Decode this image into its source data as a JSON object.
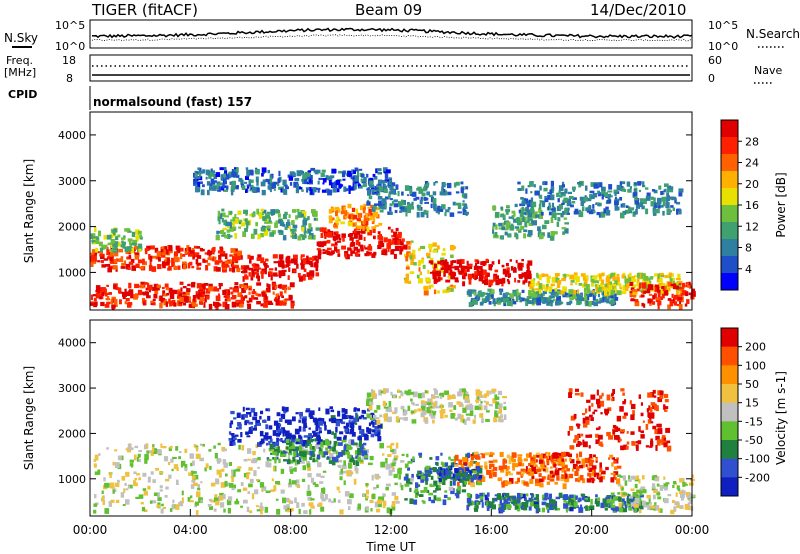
{
  "header": {
    "radar": "TIGER (fitACF)",
    "beam": "Beam 09",
    "date": "14/Dec/2010"
  },
  "top_panel": {
    "left_label": "N.Sky",
    "right_label": "N.Search",
    "left_ticks": [
      "10^5",
      "10^0"
    ],
    "right_ticks": [
      "10^5",
      "10^0"
    ]
  },
  "freq_panel": {
    "left_label_1": "Freq.",
    "left_label_2": "[MHz]",
    "right_label": "Nave",
    "left_ticks": [
      "18",
      "8"
    ],
    "right_ticks": [
      "60",
      "0"
    ]
  },
  "cpid_panel": {
    "label": "CPID",
    "text": "normalsound (fast) 157"
  },
  "chart_data": [
    {
      "type": "heatmap",
      "title": "",
      "quantity": "Power",
      "colorbar_label": "Power [dB]",
      "colorbar_ticks": [
        "28",
        "24",
        "20",
        "16",
        "12",
        "8",
        "4"
      ],
      "colorscale": [
        "#0000ff",
        "#1f4fc8",
        "#2f7fa0",
        "#3fa070",
        "#6fbf3f",
        "#e8e000",
        "#ffb000",
        "#ff6000",
        "#ff2000",
        "#e00000"
      ],
      "ylabel": "Slant Range [km]",
      "ylim": [
        180,
        4500
      ],
      "yticks": [
        "1000",
        "2000",
        "3000",
        "4000"
      ],
      "xlim_hours": [
        0,
        24
      ],
      "layers": [
        {
          "t": [
            0.0,
            8.0
          ],
          "r": [
            300,
            800
          ],
          "v": 0.9
        },
        {
          "t": [
            0.0,
            6.0
          ],
          "r": [
            1100,
            1600
          ],
          "v": 0.85
        },
        {
          "t": [
            6.0,
            9.0
          ],
          "r": [
            900,
            1400
          ],
          "v": 0.95
        },
        {
          "t": [
            9.0,
            12.5
          ],
          "r": [
            1400,
            2000
          ],
          "v": 0.95
        },
        {
          "t": [
            12.5,
            14.5
          ],
          "r": [
            600,
            1700
          ],
          "v": 0.6
        },
        {
          "t": [
            13.5,
            17.5
          ],
          "r": [
            800,
            1300
          ],
          "v": 1.0
        },
        {
          "t": [
            15.0,
            21.0
          ],
          "r": [
            350,
            650
          ],
          "v": 0.3
        },
        {
          "t": [
            17.5,
            23.5
          ],
          "r": [
            600,
            1000
          ],
          "v": 0.55
        },
        {
          "t": [
            21.5,
            24.0
          ],
          "r": [
            300,
            800
          ],
          "v": 0.9
        },
        {
          "t": [
            5.0,
            9.0
          ],
          "r": [
            1800,
            2400
          ],
          "v": 0.4
        },
        {
          "t": [
            9.5,
            11.5
          ],
          "r": [
            2000,
            2500
          ],
          "v": 0.7
        },
        {
          "t": [
            11.0,
            15.0
          ],
          "r": [
            2300,
            3000
          ],
          "v": 0.25
        },
        {
          "t": [
            16.0,
            19.0
          ],
          "r": [
            1800,
            2500
          ],
          "v": 0.35
        },
        {
          "t": [
            17.0,
            23.5
          ],
          "r": [
            2300,
            3000
          ],
          "v": 0.25
        },
        {
          "t": [
            4.0,
            12.0
          ],
          "r": [
            2800,
            3300
          ],
          "v": 0.2
        },
        {
          "t": [
            0.0,
            2.0
          ],
          "r": [
            1500,
            2000
          ],
          "v": 0.45
        }
      ]
    },
    {
      "type": "heatmap",
      "title": "",
      "quantity": "Velocity",
      "colorbar_label": "Velocity [m s-1]",
      "colorbar_ticks": [
        "200",
        "100",
        "50",
        "15",
        "-15",
        "-50",
        "-100",
        "-200"
      ],
      "colorscale": [
        "#1020c0",
        "#3050d0",
        "#208040",
        "#60c030",
        "#c0c0c0",
        "#f0c040",
        "#ff9000",
        "#ff5000",
        "#e00000"
      ],
      "ylabel": "Slant Range [km]",
      "ylim": [
        180,
        4500
      ],
      "yticks": [
        "1000",
        "2000",
        "3000",
        "4000"
      ],
      "xlim_hours": [
        0,
        24
      ],
      "xlabel": "Time UT",
      "xticks": [
        "00:00",
        "04:00",
        "08:00",
        "12:00",
        "16:00",
        "20:00",
        "00:00"
      ],
      "layers": [
        {
          "t": [
            0.0,
            12.5
          ],
          "r": [
            300,
            1800
          ],
          "v": 0.5
        },
        {
          "t": [
            12.5,
            15.5
          ],
          "r": [
            500,
            1600
          ],
          "v": 0.3
        },
        {
          "t": [
            14.5,
            19.0
          ],
          "r": [
            900,
            1600
          ],
          "v": 0.75
        },
        {
          "t": [
            17.5,
            21.0
          ],
          "r": [
            1000,
            1600
          ],
          "v": 0.85
        },
        {
          "t": [
            15.0,
            22.0
          ],
          "r": [
            350,
            700
          ],
          "v": 0.25
        },
        {
          "t": [
            21.0,
            24.0
          ],
          "r": [
            300,
            1100
          ],
          "v": 0.5
        },
        {
          "t": [
            5.5,
            9.5
          ],
          "r": [
            1800,
            2600
          ],
          "v": 0.05
        },
        {
          "t": [
            9.5,
            11.5
          ],
          "r": [
            1900,
            2600
          ],
          "v": 0.1
        },
        {
          "t": [
            11.0,
            16.5
          ],
          "r": [
            2300,
            3000
          ],
          "v": 0.5
        },
        {
          "t": [
            19.0,
            23.0
          ],
          "r": [
            1700,
            3000
          ],
          "v": 0.95
        },
        {
          "t": [
            7.0,
            11.0
          ],
          "r": [
            1400,
            1900
          ],
          "v": 0.3
        },
        {
          "t": [
            13.0,
            15.5
          ],
          "r": [
            1000,
            1300
          ],
          "v": 0.2
        }
      ]
    }
  ]
}
